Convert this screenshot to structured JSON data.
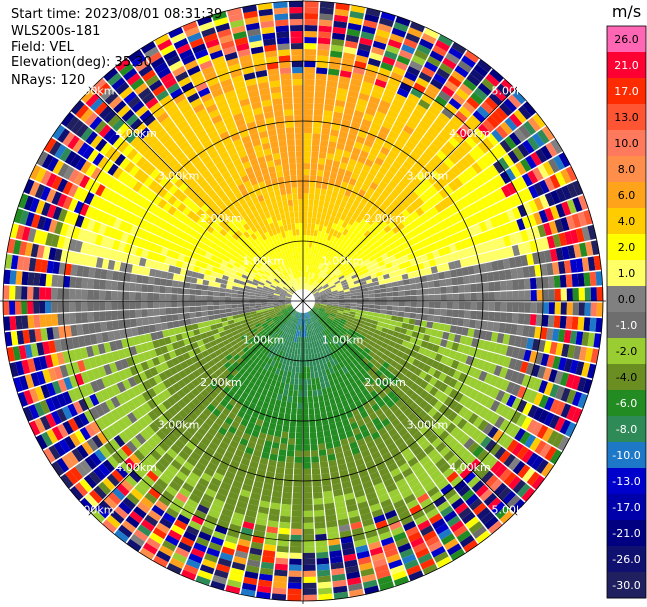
{
  "header": {
    "start_time": "Start time: 2023/08/01 08:31:39",
    "instrument": "WLS200s-181",
    "field": "Field: VEL",
    "elevation": "Elevation(deg): 35.30",
    "nrays": "NRays: 120"
  },
  "colorbar": {
    "unit": "m/s",
    "ticks": [
      "26.0",
      "21.0",
      "17.0",
      "13.0",
      "10.0",
      "8.0",
      "6.0",
      "4.0",
      "2.0",
      "1.0",
      "0.0",
      "-1.0",
      "-2.0",
      "-4.0",
      "-6.0",
      "-8.0",
      "-10.0",
      "-13.0",
      "-17.0",
      "-21.0",
      "-26.0",
      "-30.0"
    ],
    "colors": [
      "#ff66b3",
      "#ff0033",
      "#ff2b00",
      "#ff5533",
      "#ff7a5c",
      "#ff8e4a",
      "#ffa31a",
      "#ffcc00",
      "#ffff00",
      "#ffff66",
      "#808080",
      "#6e6e6e",
      "#9acd32",
      "#6b8e23",
      "#228b22",
      "#2e8b57",
      "#1e78c8",
      "#0000cd",
      "#0000aa",
      "#000080",
      "#101070",
      "#202060"
    ]
  },
  "chart_data": {
    "type": "heatmap",
    "projection": "polar-ppi",
    "field": "VEL",
    "units": "m/s",
    "nrays": 120,
    "range_rings_km": [
      1.0,
      2.0,
      3.0,
      4.0,
      5.0
    ],
    "range_ring_labels": [
      "1.00km",
      "2.00km",
      "3.00km",
      "4.00km",
      "5.00km"
    ],
    "color_range": [
      -30.0,
      26.0
    ],
    "pattern": "positive (yellow/orange) radial velocities over the northern half, negative (green/blue) over the southern half, noisy outer gates"
  }
}
